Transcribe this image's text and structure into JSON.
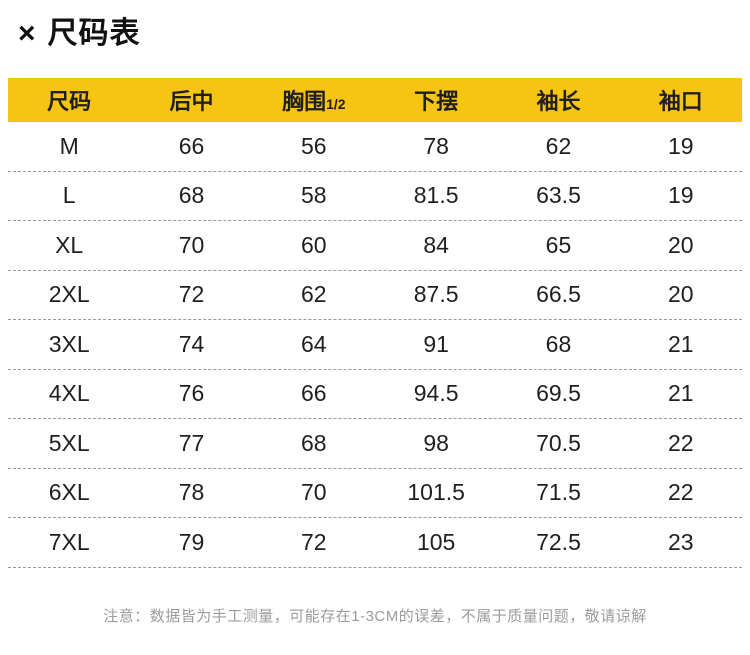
{
  "panel": {
    "close_icon": "×",
    "title": "尺码表"
  },
  "table": {
    "header": [
      "尺码",
      "后中",
      "胸围",
      "下摆",
      "袖长",
      "袖口"
    ],
    "chest_fraction": "1/2",
    "rows": [
      [
        "M",
        "66",
        "56",
        "78",
        "62",
        "19"
      ],
      [
        "L",
        "68",
        "58",
        "81.5",
        "63.5",
        "19"
      ],
      [
        "XL",
        "70",
        "60",
        "84",
        "65",
        "20"
      ],
      [
        "2XL",
        "72",
        "62",
        "87.5",
        "66.5",
        "20"
      ],
      [
        "3XL",
        "74",
        "64",
        "91",
        "68",
        "21"
      ],
      [
        "4XL",
        "76",
        "66",
        "94.5",
        "69.5",
        "21"
      ],
      [
        "5XL",
        "77",
        "68",
        "98",
        "70.5",
        "22"
      ],
      [
        "6XL",
        "78",
        "70",
        "101.5",
        "71.5",
        "22"
      ],
      [
        "7XL",
        "79",
        "72",
        "105",
        "72.5",
        "23"
      ]
    ]
  },
  "note": "注意：数据皆为手工测量，可能存在1-3CM的误差，不属于质量问题，敬请谅解",
  "colors": {
    "header_bg": "#F6C413",
    "row_divider": "#999999",
    "text": "#1F1F1F",
    "note_text": "#9B9B9B"
  }
}
